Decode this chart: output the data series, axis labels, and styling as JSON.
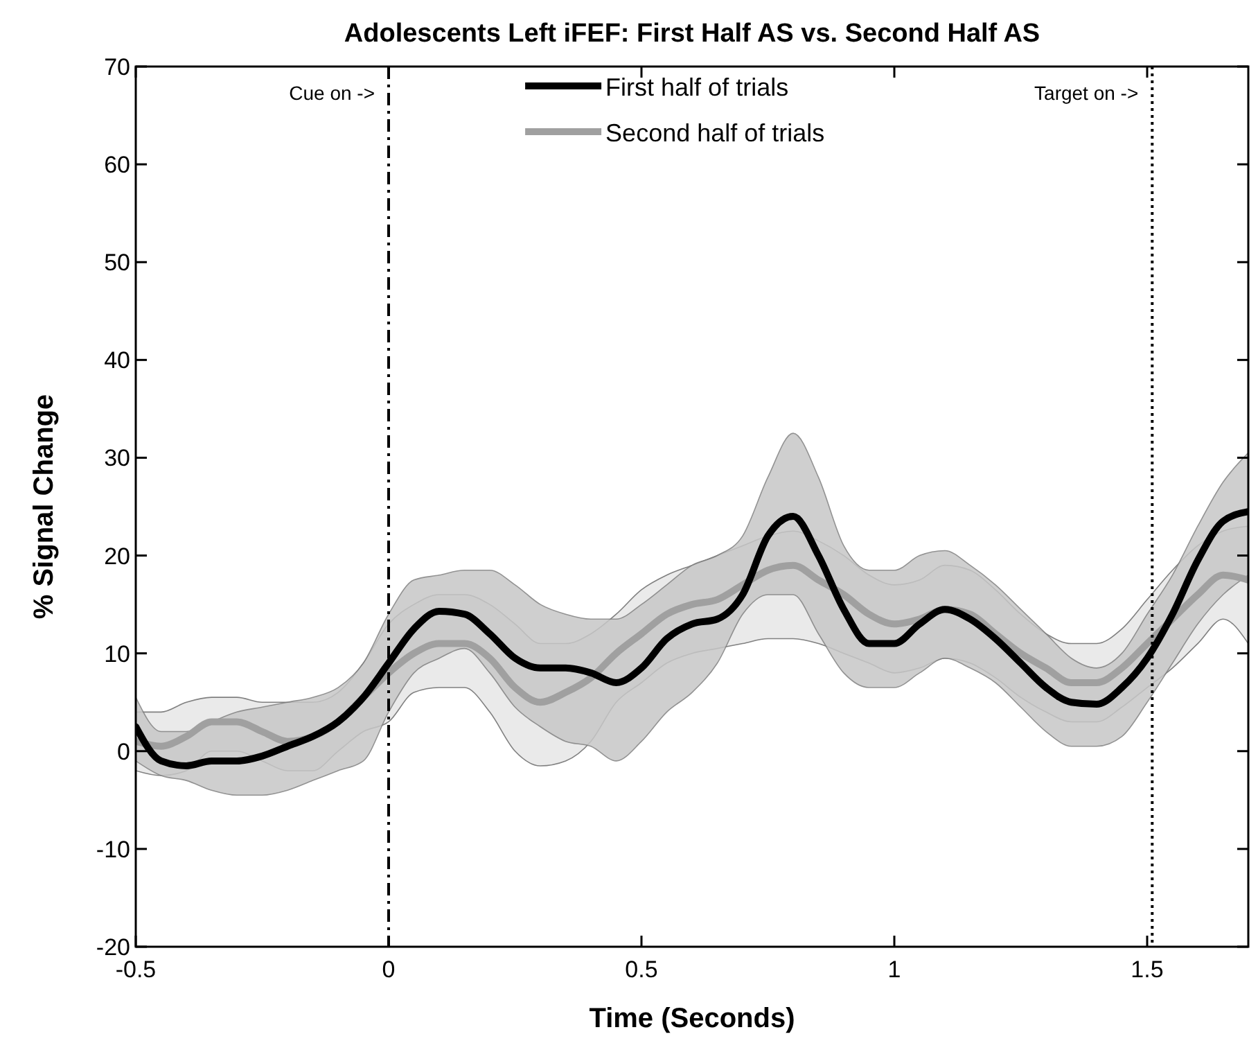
{
  "chart_data": {
    "type": "line",
    "title": "Adolescents Left iFEF: First Half AS vs. Second Half AS",
    "xlabel": "Time (Seconds)",
    "ylabel": "% Signal Change",
    "x": [
      -0.5,
      -0.45,
      -0.4,
      -0.35,
      -0.3,
      -0.25,
      -0.2,
      -0.15,
      -0.1,
      -0.05,
      0,
      0.05,
      0.1,
      0.15,
      0.2,
      0.25,
      0.3,
      0.35,
      0.4,
      0.45,
      0.5,
      0.55,
      0.6,
      0.65,
      0.7,
      0.75,
      0.8,
      0.85,
      0.9,
      0.95,
      1,
      1.05,
      1.1,
      1.15,
      1.2,
      1.25,
      1.3,
      1.35,
      1.4,
      1.45,
      1.5,
      1.55,
      1.6,
      1.65,
      1.7
    ],
    "series": [
      {
        "name": "Second half of trials",
        "color": "#a0a0a0",
        "values": [
          1,
          0.5,
          1.5,
          3,
          3,
          2,
          1,
          1.5,
          3,
          5.5,
          8,
          10,
          11,
          11,
          9.5,
          6.5,
          5,
          6,
          7.5,
          10,
          12,
          14,
          15,
          15.5,
          17,
          18.5,
          19,
          17.5,
          16,
          14,
          13,
          13.5,
          14.5,
          14,
          12,
          10,
          8.5,
          7,
          7,
          8.5,
          11,
          13.5,
          16,
          18,
          17.5
        ],
        "upper": [
          4,
          4,
          5,
          5.5,
          5.5,
          5,
          5,
          5,
          6,
          9,
          13,
          15,
          16,
          16,
          15,
          13,
          11,
          11,
          12,
          14,
          16.5,
          18,
          19,
          20,
          21,
          22,
          22.5,
          21.5,
          20,
          18,
          17,
          17.5,
          19,
          18.5,
          16.5,
          14,
          12,
          11,
          11,
          12.5,
          15.5,
          18.5,
          21,
          22.5,
          23
        ],
        "lower": [
          -2,
          -2.5,
          -2,
          0,
          0,
          -1,
          -2,
          -2,
          0,
          2,
          3,
          6,
          6.5,
          6.5,
          4,
          0,
          -1.5,
          -1,
          1,
          5,
          7,
          9,
          10,
          10.5,
          11,
          11.5,
          11.5,
          11,
          10,
          9,
          8,
          8.5,
          9.5,
          9,
          7.5,
          5.5,
          4,
          3,
          3,
          4.5,
          6.5,
          8.5,
          11,
          13.5,
          11
        ]
      },
      {
        "name": "First half of trials",
        "color": "#000000",
        "values": [
          2.5,
          -1,
          -1.5,
          -1,
          -1,
          -0.5,
          0.5,
          1.5,
          3,
          5.5,
          9,
          12.5,
          14.3,
          14,
          12,
          9.5,
          8.5,
          8.5,
          8,
          7,
          8.5,
          11.5,
          13,
          13.5,
          16,
          22,
          24,
          20,
          14.5,
          11,
          11,
          13,
          14.5,
          13.5,
          11.5,
          9,
          6.5,
          5,
          4.8,
          6.5,
          9.5,
          14,
          19.5,
          23.5,
          24.5
        ],
        "upper": [
          5.5,
          2,
          2,
          3,
          4,
          4.5,
          5,
          5.5,
          6.5,
          9,
          14,
          17.5,
          18,
          18.5,
          18.5,
          17,
          15,
          14,
          13.5,
          13.5,
          15,
          17,
          19,
          20,
          22,
          28,
          32.5,
          28,
          21,
          18.5,
          18.5,
          20,
          20.5,
          19,
          17,
          14.5,
          12,
          9.5,
          8.5,
          10,
          14,
          18,
          23,
          27.5,
          30.5
        ],
        "lower": [
          -1,
          -2.5,
          -3,
          -4,
          -4.5,
          -4.5,
          -4,
          -3,
          -2,
          -1,
          4,
          8,
          9.5,
          10.5,
          8,
          4.5,
          2.5,
          1,
          0.5,
          -1,
          1,
          4,
          6,
          9,
          14,
          16,
          16,
          12,
          8,
          6.5,
          6.5,
          8,
          9.5,
          8.5,
          7,
          4.5,
          2,
          0.5,
          0.5,
          1.5,
          5,
          9,
          13,
          16,
          18
        ]
      }
    ],
    "xlim": [
      -0.5,
      1.7
    ],
    "xticks": [
      -0.5,
      0,
      0.5,
      1,
      1.5
    ],
    "ylim": [
      -20,
      70
    ],
    "yticks": [
      -20,
      -10,
      0,
      10,
      20,
      30,
      40,
      50,
      60,
      70
    ],
    "ref_lines": [
      {
        "axis": "x",
        "value": 0,
        "label": "Cue on ->",
        "color": "#000000",
        "line_style": "dashed"
      },
      {
        "axis": "x",
        "value": 1.51,
        "label": "Target on ->",
        "color": "#000000",
        "line_style": "dotted"
      }
    ],
    "legend": "top",
    "grid": false
  }
}
